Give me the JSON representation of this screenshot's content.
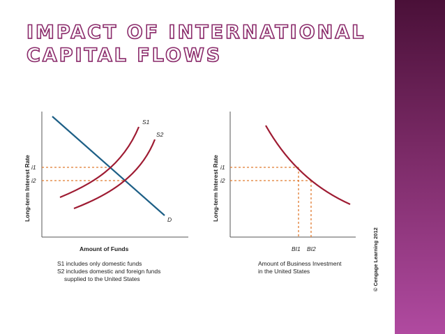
{
  "slide": {
    "title_line1": "IMPACT OF INTERNATIONAL",
    "title_line2": "CAPITAL FLOWS",
    "accent_color": "#7a2a66"
  },
  "left_chart": {
    "ylabel": "Long-term Interest Rate",
    "xlabel": "Amount of Funds",
    "y_tick_1": "i1",
    "y_tick_2": "i2",
    "curve_s1": "S1",
    "curve_s2": "S2",
    "curve_d": "D",
    "note_line1": "S1 includes only domestic funds",
    "note_line2": "S2 includes domestic and foreign funds",
    "note_line3": "supplied to the United States"
  },
  "right_chart": {
    "ylabel": "Long-term Interest Rate",
    "xlabel_line1": "Amount of Business Investment",
    "xlabel_line2": "in the United States",
    "y_tick_1": "i1",
    "y_tick_2": "i2",
    "x_tick_1": "BI1",
    "x_tick_2": "BI2"
  },
  "copyright": "© Cengage Learning 2012",
  "colors": {
    "supply": "#9e1b32",
    "demand": "#1d5f86",
    "guides": "#e07a2e",
    "axis": "#555555"
  }
}
